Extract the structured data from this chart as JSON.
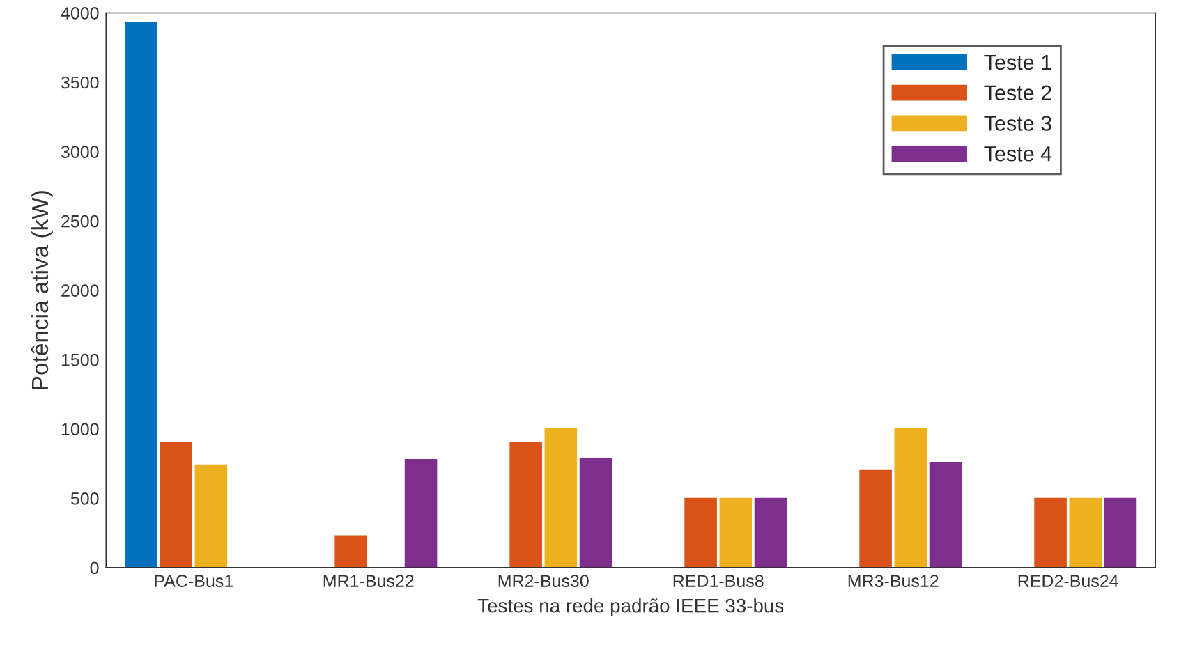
{
  "chart_data": {
    "type": "bar",
    "xlabel": "Testes na rede padrão IEEE 33-bus",
    "ylabel": "Potência ativa (kW)",
    "categories": [
      "PAC-Bus1",
      "MR1-Bus22",
      "MR2-Bus30",
      "RED1-Bus8",
      "MR3-Bus12",
      "RED2-Bus24"
    ],
    "series": [
      {
        "name": "Teste 1",
        "color": "#0072bd",
        "values": [
          3930,
          0,
          0,
          0,
          0,
          0
        ]
      },
      {
        "name": "Teste 2",
        "color": "#d95319",
        "values": [
          900,
          230,
          900,
          500,
          700,
          500
        ]
      },
      {
        "name": "Teste 3",
        "color": "#edb120",
        "values": [
          740,
          0,
          1000,
          500,
          1000,
          500
        ]
      },
      {
        "name": "Teste 4",
        "color": "#7e2f8e",
        "values": [
          0,
          780,
          790,
          500,
          760,
          500
        ]
      }
    ],
    "ylim": [
      0,
      4000
    ],
    "yticks": [
      0,
      500,
      1000,
      1500,
      2000,
      2500,
      3000,
      3500,
      4000
    ],
    "legend": "top right",
    "grid": false
  }
}
